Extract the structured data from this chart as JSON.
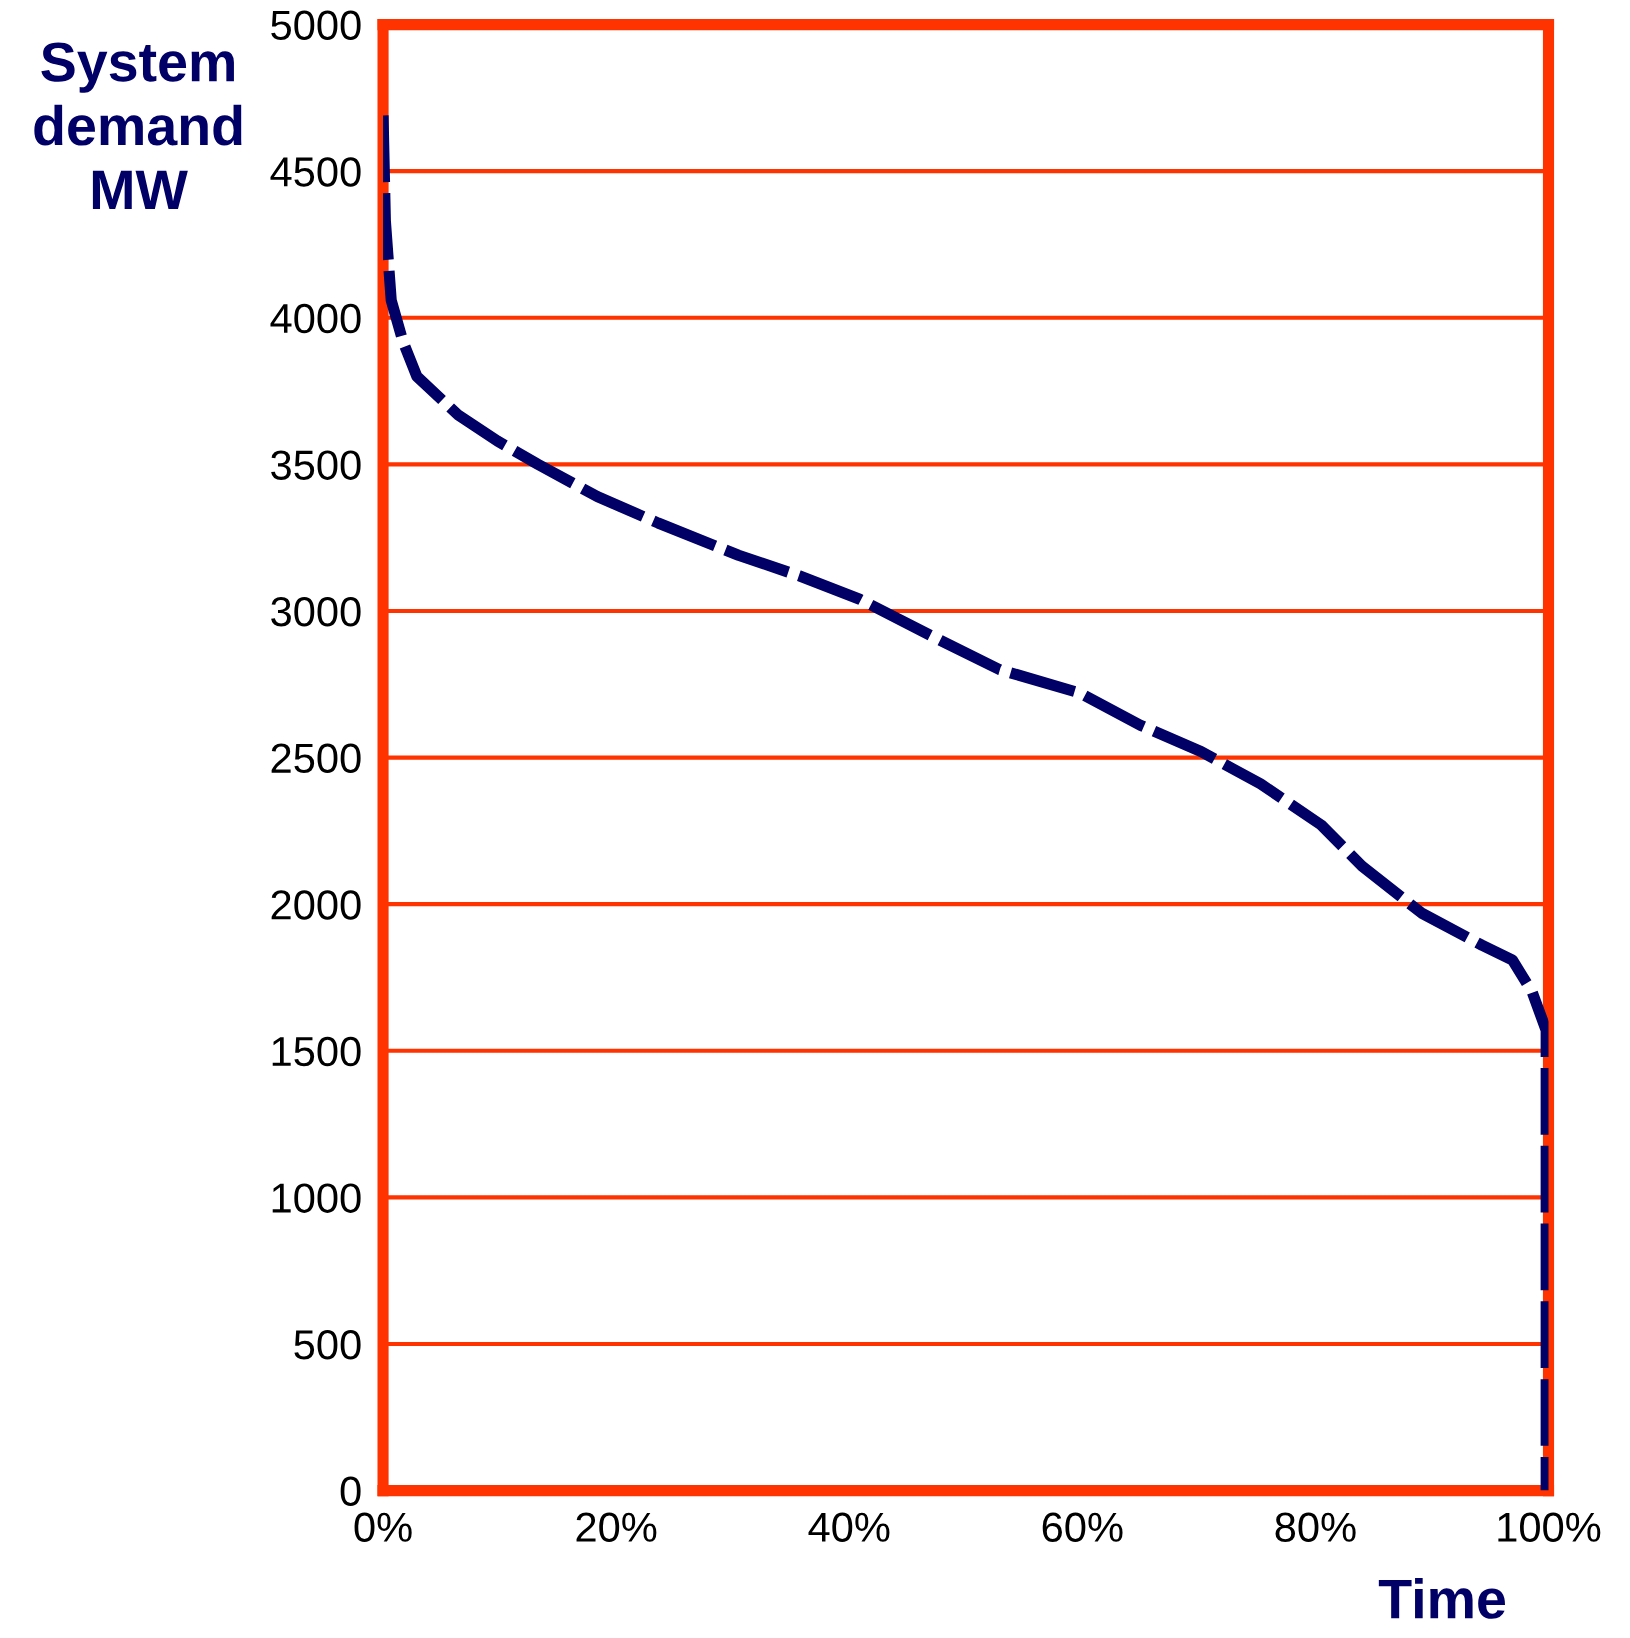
{
  "chart_data": {
    "type": "line",
    "xlabel": "Time",
    "ylabel": "System\ndemand\nMW",
    "series": [
      {
        "color": "#000066",
        "x": [
          0,
          0.2,
          0.7,
          1.7,
          2.9,
          6.4,
          9.8,
          13.3,
          18.4,
          23.6,
          30.5,
          35.7,
          40.9,
          47.8,
          52.9,
          59.8,
          65,
          70.2,
          75.3,
          80.5,
          84,
          89.1,
          94.3,
          96.9,
          98.6,
          99.8,
          99.8
        ],
        "values": [
          4690,
          4330,
          4060,
          3920,
          3800,
          3670,
          3580,
          3500,
          3390,
          3300,
          3190,
          3120,
          3040,
          2900,
          2800,
          2720,
          2610,
          2520,
          2410,
          2270,
          2130,
          1970,
          1860,
          1810,
          1700,
          1570,
          0
        ]
      }
    ],
    "xlim": [
      0,
      100
    ],
    "xticks": [
      {
        "value": 0,
        "label": "0%"
      },
      {
        "value": 20,
        "label": "20%"
      },
      {
        "value": 40,
        "label": "40%"
      },
      {
        "value": 60,
        "label": "60%"
      },
      {
        "value": 80,
        "label": "80%"
      },
      {
        "value": 100,
        "label": "100%"
      }
    ],
    "ylim": [
      0,
      5000
    ],
    "yticks": [
      0,
      500,
      1000,
      1500,
      2000,
      2500,
      3000,
      3500,
      4000,
      4500,
      5000
    ],
    "grid": "y",
    "line_style": "dashed",
    "marker": "none",
    "legend": false
  }
}
